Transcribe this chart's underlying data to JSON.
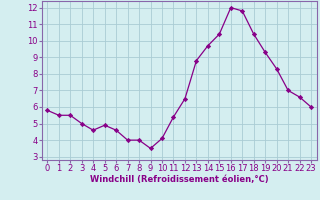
{
  "x": [
    0,
    1,
    2,
    3,
    4,
    5,
    6,
    7,
    8,
    9,
    10,
    11,
    12,
    13,
    14,
    15,
    16,
    17,
    18,
    19,
    20,
    21,
    22,
    23
  ],
  "y": [
    5.8,
    5.5,
    5.5,
    5.0,
    4.6,
    4.9,
    4.6,
    4.0,
    4.0,
    3.5,
    4.1,
    5.4,
    6.5,
    8.8,
    9.7,
    10.4,
    12.0,
    11.8,
    10.4,
    9.3,
    8.3,
    7.0,
    6.6,
    6.0
  ],
  "line_color": "#880088",
  "marker": "D",
  "markersize": 2.2,
  "linewidth": 0.9,
  "background_color": "#d4eef0",
  "grid_color": "#aaccd4",
  "xlabel": "Windchill (Refroidissement éolien,°C)",
  "xlabel_fontsize": 6.0,
  "ylabel_ticks": [
    3,
    4,
    5,
    6,
    7,
    8,
    9,
    10,
    11,
    12
  ],
  "xlim": [
    -0.5,
    23.5
  ],
  "ylim": [
    2.8,
    12.4
  ],
  "tick_fontsize": 6.0,
  "spine_color": "#8866aa",
  "xlabel_color": "#880088"
}
